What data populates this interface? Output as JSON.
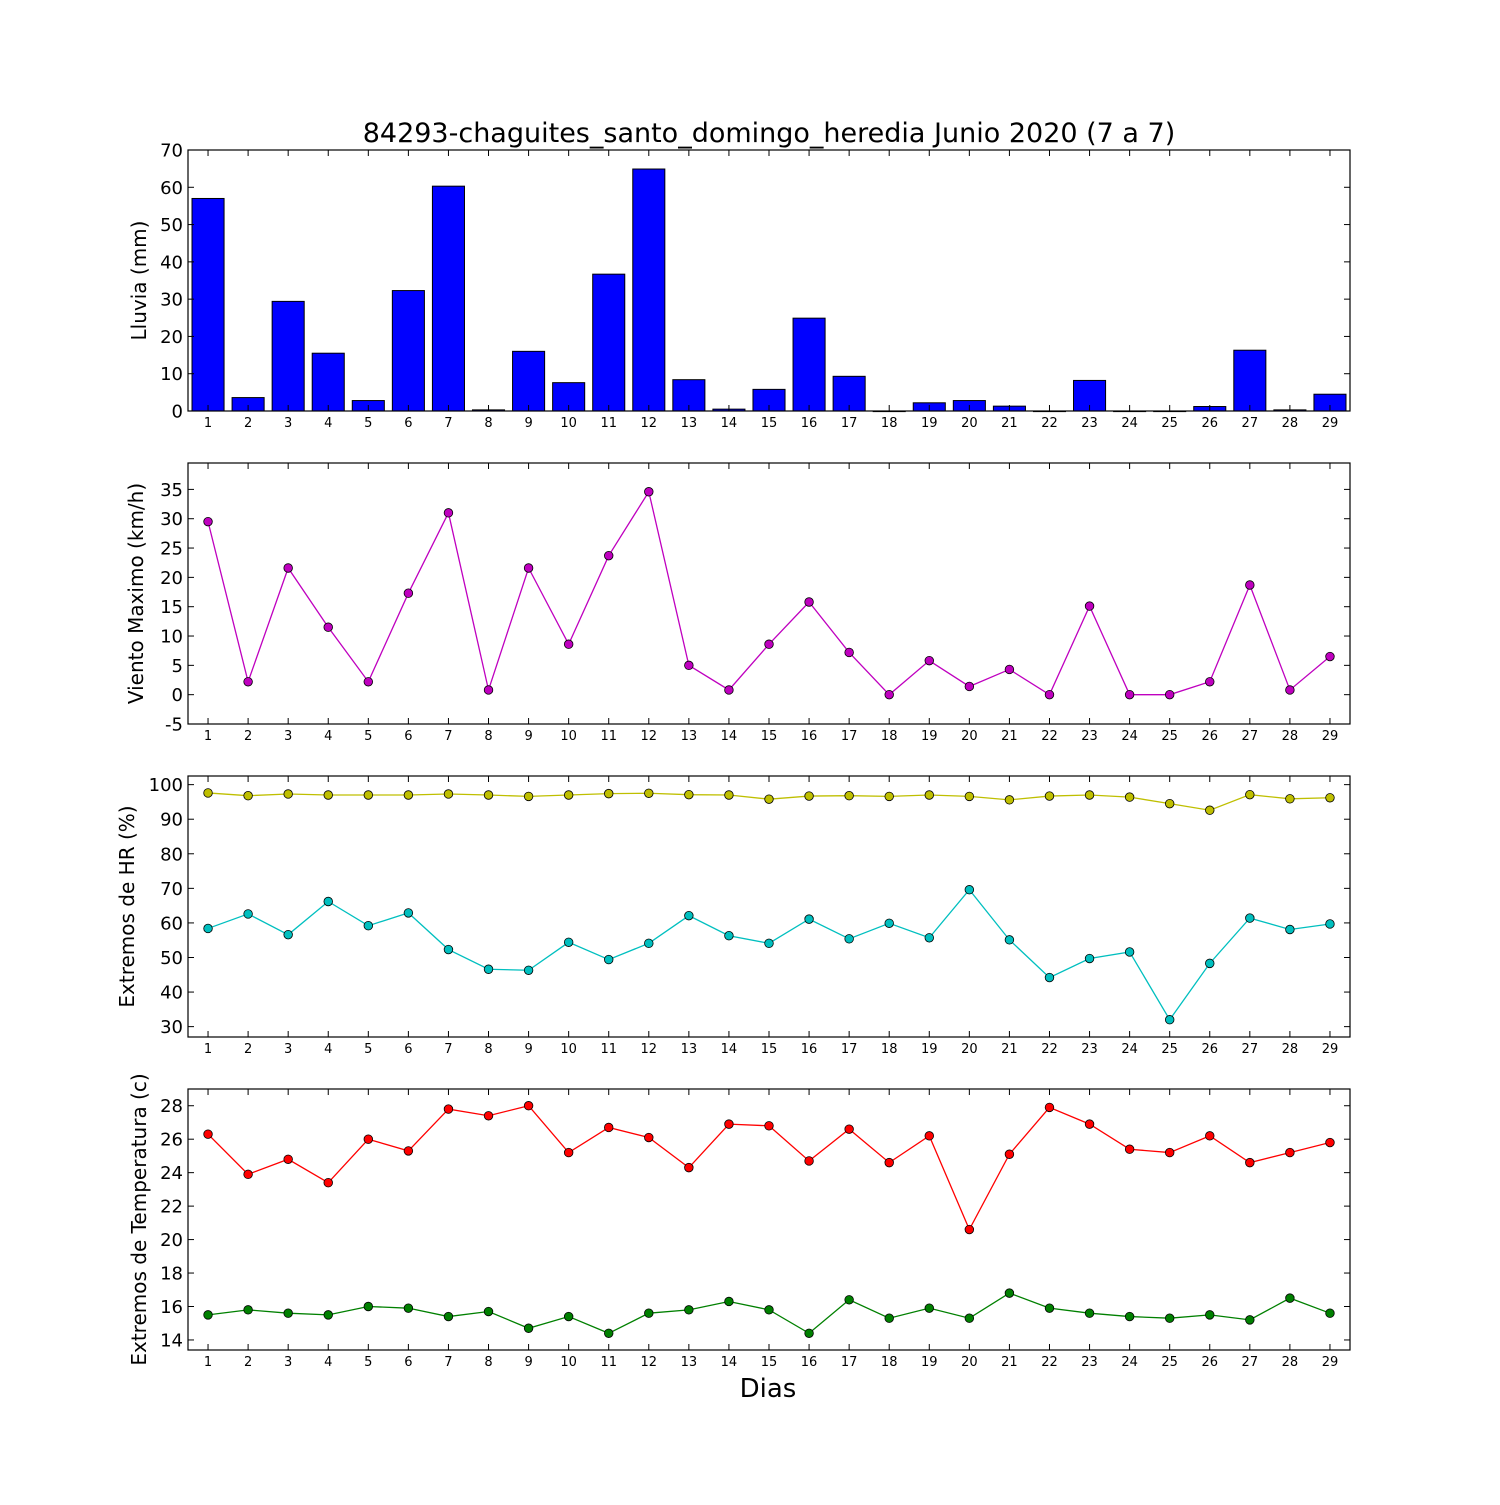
{
  "figure": {
    "title": "84293-chaguites_santo_domingo_heredia Junio 2020  (7 a 7)",
    "xlabel": "Dias"
  },
  "chart_data": [
    {
      "type": "bar",
      "categories": [
        "1",
        "2",
        "3",
        "4",
        "5",
        "6",
        "7",
        "8",
        "9",
        "10",
        "11",
        "12",
        "13",
        "14",
        "15",
        "16",
        "17",
        "18",
        "19",
        "20",
        "21",
        "22",
        "23",
        "24",
        "25",
        "26",
        "27",
        "28",
        "29"
      ],
      "values": [
        57.0,
        3.6,
        29.4,
        15.5,
        2.8,
        32.3,
        60.3,
        0.3,
        16.0,
        7.6,
        36.7,
        64.9,
        8.4,
        0.5,
        5.8,
        24.9,
        9.3,
        0.0,
        2.2,
        2.8,
        1.3,
        0.0,
        8.2,
        0.0,
        0.0,
        1.2,
        16.3,
        0.3,
        4.5
      ],
      "ylabel": "Lluvia (mm)",
      "ylim": [
        0,
        70
      ],
      "yticks": [
        0,
        10,
        20,
        30,
        40,
        50,
        60,
        70
      ],
      "color": "#0000ff",
      "grid": false
    },
    {
      "type": "line",
      "categories": [
        "1",
        "2",
        "3",
        "4",
        "5",
        "6",
        "7",
        "8",
        "9",
        "10",
        "11",
        "12",
        "13",
        "14",
        "15",
        "16",
        "17",
        "18",
        "19",
        "20",
        "21",
        "22",
        "23",
        "24",
        "25",
        "26",
        "27",
        "28",
        "29"
      ],
      "series": [
        {
          "values": [
            29.5,
            2.2,
            21.6,
            11.5,
            2.2,
            17.3,
            31.0,
            0.8,
            21.6,
            8.6,
            23.7,
            34.6,
            5.0,
            0.8,
            8.6,
            15.8,
            7.2,
            0.0,
            5.8,
            1.4,
            4.3,
            0.0,
            15.1,
            0.0,
            0.0,
            2.2,
            18.7,
            0.8,
            6.5
          ],
          "color": "#bf00bf"
        }
      ],
      "ylabel": "Viento Maximo (km/h)",
      "ylim": [
        -5,
        39.5
      ],
      "yticks": [
        -5,
        0,
        5,
        10,
        15,
        20,
        25,
        30,
        35
      ],
      "grid": false
    },
    {
      "type": "line",
      "categories": [
        "1",
        "2",
        "3",
        "4",
        "5",
        "6",
        "7",
        "8",
        "9",
        "10",
        "11",
        "12",
        "13",
        "14",
        "15",
        "16",
        "17",
        "18",
        "19",
        "20",
        "21",
        "22",
        "23",
        "24",
        "25",
        "26",
        "27",
        "28",
        "29"
      ],
      "series": [
        {
          "values": [
            97.6,
            96.8,
            97.3,
            97.0,
            97.0,
            97.0,
            97.3,
            97.0,
            96.6,
            97.0,
            97.4,
            97.5,
            97.1,
            97.0,
            95.8,
            96.7,
            96.8,
            96.6,
            97.0,
            96.6,
            95.6,
            96.7,
            97.0,
            96.4,
            94.5,
            92.6,
            97.1,
            95.9,
            96.2
          ],
          "color": "#bfbf00"
        },
        {
          "values": [
            58.4,
            62.6,
            56.6,
            66.2,
            59.2,
            62.9,
            52.3,
            46.6,
            46.3,
            54.4,
            49.4,
            54.1,
            62.1,
            56.3,
            54.1,
            61.1,
            55.4,
            59.9,
            55.7,
            69.6,
            55.1,
            44.2,
            49.7,
            51.6,
            32.0,
            48.3,
            61.4,
            58.1,
            59.7
          ],
          "color": "#00bfbf"
        }
      ],
      "ylabel": "Extremos de HR (%)",
      "ylim": [
        27,
        102.5
      ],
      "yticks": [
        30,
        40,
        50,
        60,
        70,
        80,
        90,
        100
      ],
      "grid": false
    },
    {
      "type": "line",
      "categories": [
        "1",
        "2",
        "3",
        "4",
        "5",
        "6",
        "7",
        "8",
        "9",
        "10",
        "11",
        "12",
        "13",
        "14",
        "15",
        "16",
        "17",
        "18",
        "19",
        "20",
        "21",
        "22",
        "23",
        "24",
        "25",
        "26",
        "27",
        "28",
        "29"
      ],
      "series": [
        {
          "values": [
            26.3,
            23.9,
            24.8,
            23.4,
            26.0,
            25.3,
            27.8,
            27.4,
            28.0,
            25.2,
            26.7,
            26.1,
            24.3,
            26.9,
            26.8,
            24.7,
            26.6,
            24.6,
            26.2,
            20.6,
            25.1,
            27.9,
            26.9,
            25.4,
            25.2,
            26.2,
            24.6,
            25.2,
            25.8
          ],
          "color": "#ff0000"
        },
        {
          "values": [
            15.5,
            15.8,
            15.6,
            15.5,
            16.0,
            15.9,
            15.4,
            15.7,
            14.7,
            15.4,
            14.4,
            15.6,
            15.8,
            16.3,
            15.8,
            14.4,
            16.4,
            15.3,
            15.9,
            15.3,
            16.8,
            15.9,
            15.6,
            15.4,
            15.3,
            15.5,
            15.2,
            16.5,
            15.6
          ],
          "color": "#008000"
        }
      ],
      "ylabel": "Extremos de Temperatura (c)",
      "ylim": [
        13.4,
        29.0
      ],
      "yticks": [
        14,
        16,
        18,
        20,
        22,
        24,
        26,
        28
      ],
      "grid": false
    }
  ]
}
